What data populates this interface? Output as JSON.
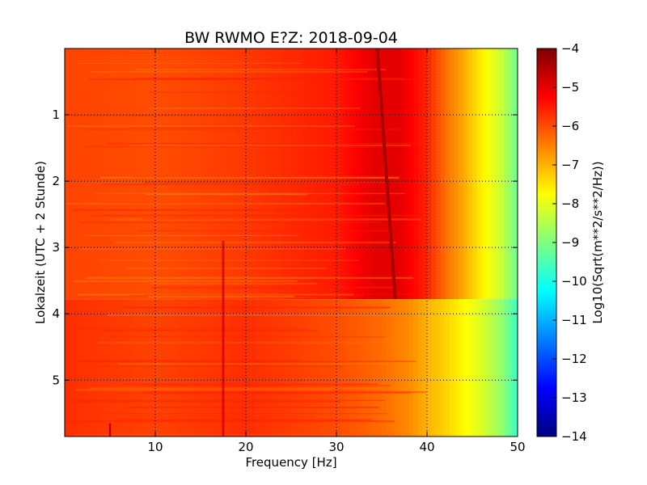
{
  "chart_data": {
    "type": "heatmap",
    "title": "BW RWMO E?Z: 2018-09-04",
    "xlabel": "Frequency [Hz]",
    "ylabel": "Lokalzeit (UTC + 2 Stunde)",
    "xlim": [
      0,
      50
    ],
    "ylim": [
      5.85,
      0
    ],
    "x_ticks": [
      10,
      20,
      30,
      40,
      50
    ],
    "x_tick_labels": [
      "10",
      "20",
      "30",
      "40",
      "50"
    ],
    "y_ticks": [
      1,
      2,
      3,
      4,
      5
    ],
    "y_tick_labels": [
      "1",
      "2",
      "3",
      "4",
      "5"
    ],
    "grid": true,
    "colormap": "jet",
    "colorbar": {
      "label": "Log10(Sqrt(m**2/s**2/Hz))",
      "range": [
        -14,
        -4
      ],
      "ticks": [
        -4,
        -5,
        -6,
        -7,
        -8,
        -9,
        -10,
        -11,
        -12,
        -13,
        -14
      ],
      "tick_labels": [
        "−4",
        "−5",
        "−6",
        "−7",
        "−8",
        "−9",
        "−10",
        "−11",
        "−12",
        "−13",
        "−14"
      ]
    },
    "frequency_profile_before_3_78h": {
      "frequency_hz": [
        0,
        10,
        20,
        30,
        34,
        37,
        40,
        42,
        44,
        46,
        48,
        50
      ],
      "log10_amplitude": [
        -5.9,
        -6.0,
        -5.8,
        -5.5,
        -5.0,
        -5.0,
        -5.6,
        -6.3,
        -6.9,
        -7.6,
        -8.2,
        -9.2
      ]
    },
    "frequency_profile_after_3_78h": {
      "frequency_hz": [
        0,
        10,
        20,
        30,
        35,
        38,
        40,
        42,
        44,
        46,
        48,
        50
      ],
      "log10_amplitude": [
        -5.7,
        -5.9,
        -5.7,
        -6.0,
        -6.3,
        -6.6,
        -7.0,
        -7.3,
        -7.7,
        -8.1,
        -8.7,
        -9.7
      ]
    },
    "features": {
      "transition_time_h": 3.78,
      "drifting_line": {
        "start_hz": 34.5,
        "start_time_h": 0.0,
        "end_hz": 36.5,
        "end_time_h": 3.78,
        "log10_amplitude": -4.4
      },
      "line_17hz": {
        "frequency_hz": 17.5,
        "start_time_h": 2.9,
        "end_time_h": 5.85,
        "log10_amplitude": -4.8
      },
      "line_5hz": {
        "frequency_hz": 5.0,
        "start_time_h": 5.65,
        "end_time_h": 5.85,
        "log10_amplitude": -4.6
      }
    }
  },
  "colors": {
    "background": "#ffffff",
    "axis": "#000000",
    "grid": "#000000"
  }
}
